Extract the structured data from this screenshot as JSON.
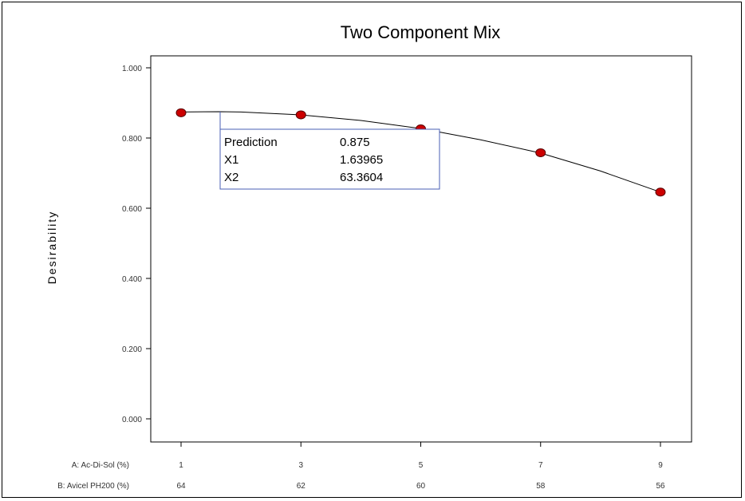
{
  "chart_data": {
    "type": "line",
    "title": "Two Component Mix",
    "ylabel": "Desirability",
    "ylim": [
      0,
      1
    ],
    "y_ticks": [
      "0.000",
      "0.200",
      "0.400",
      "0.600",
      "0.800",
      "1.000"
    ],
    "y_tick_values": [
      0,
      0.2,
      0.4,
      0.6,
      0.8,
      1.0
    ],
    "xlim": [
      1,
      9
    ],
    "x_axes": [
      {
        "label": "A: Ac-Di-Sol (%)",
        "ticks": [
          "1",
          "3",
          "5",
          "7",
          "9"
        ]
      },
      {
        "label": "B: Avicel PH200 (%)",
        "ticks": [
          "64",
          "62",
          "60",
          "58",
          "56"
        ]
      }
    ],
    "points": {
      "x": [
        1,
        3,
        5,
        7,
        9
      ],
      "y": [
        0.872,
        0.866,
        0.826,
        0.758,
        0.646
      ]
    },
    "curve": {
      "x": [
        1,
        1.64,
        2,
        3,
        4,
        5,
        6,
        7,
        8,
        9
      ],
      "y": [
        0.874,
        0.875,
        0.874,
        0.866,
        0.85,
        0.827,
        0.795,
        0.757,
        0.706,
        0.646
      ]
    },
    "grid": false,
    "tooltip": {
      "rows": [
        {
          "label": "Prediction",
          "value": "0.875"
        },
        {
          "label": "X1",
          "value": "1.63965"
        },
        {
          "label": "X2",
          "value": "63.3604"
        }
      ]
    },
    "colors": {
      "point": "#cc0000",
      "line": "#000000",
      "tooltip_border": "#4a5fb5"
    }
  }
}
